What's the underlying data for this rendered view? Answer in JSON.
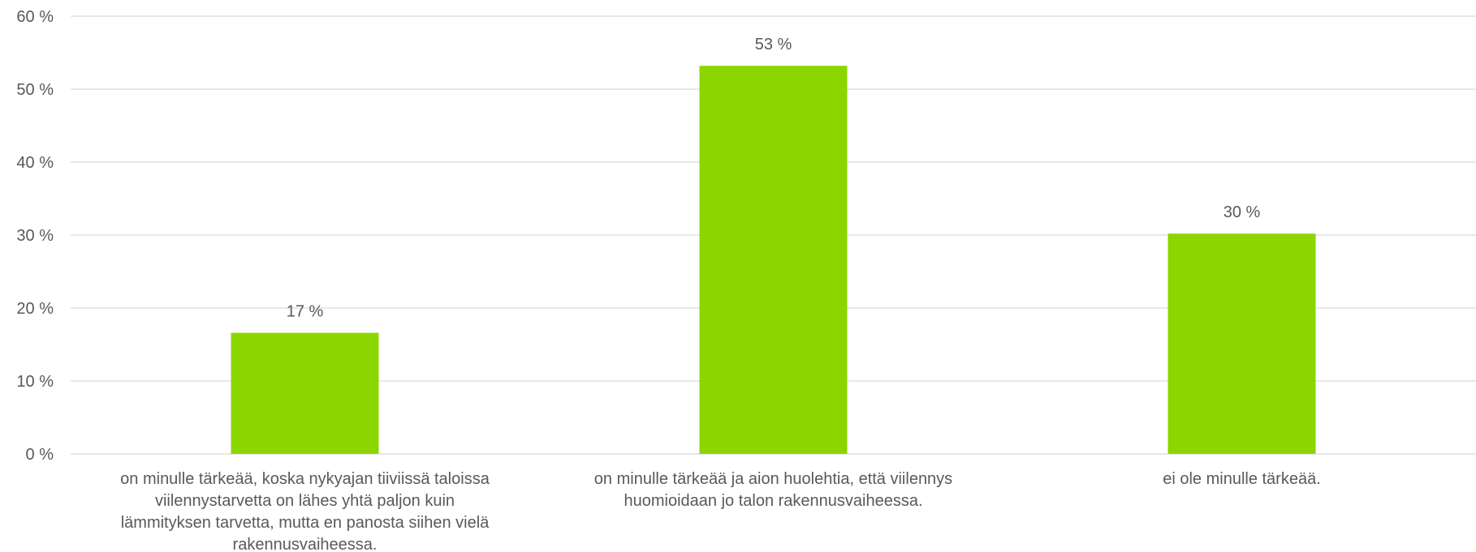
{
  "chart_data": {
    "type": "bar",
    "categories": [
      [
        "on minulle tärkeää, koska nykyajan tiiviissä taloissa",
        "viilennystarvetta on lähes yhtä paljon kuin",
        "lämmityksen tarvetta, mutta en panosta siihen vielä",
        "rakennusvaiheessa."
      ],
      [
        "on minulle tärkeää ja aion huolehtia, että viilennys",
        "huomioidaan jo talon rakennusvaiheessa."
      ],
      [
        "ei ole minulle tärkeää."
      ]
    ],
    "values": [
      16.6,
      53.2,
      30.2
    ],
    "data_labels": [
      "17 %",
      "53 %",
      "30 %"
    ],
    "ylim": [
      0,
      60
    ],
    "yticks": [
      0,
      10,
      20,
      30,
      40,
      50,
      60
    ],
    "ytick_labels": [
      "0 %",
      "10 %",
      "20 %",
      "30 %",
      "40 %",
      "50 %",
      "60 %"
    ],
    "grid": true,
    "bar_color": "#8CD600",
    "grid_color": "#D9D9D9",
    "text_color": "#595959"
  }
}
